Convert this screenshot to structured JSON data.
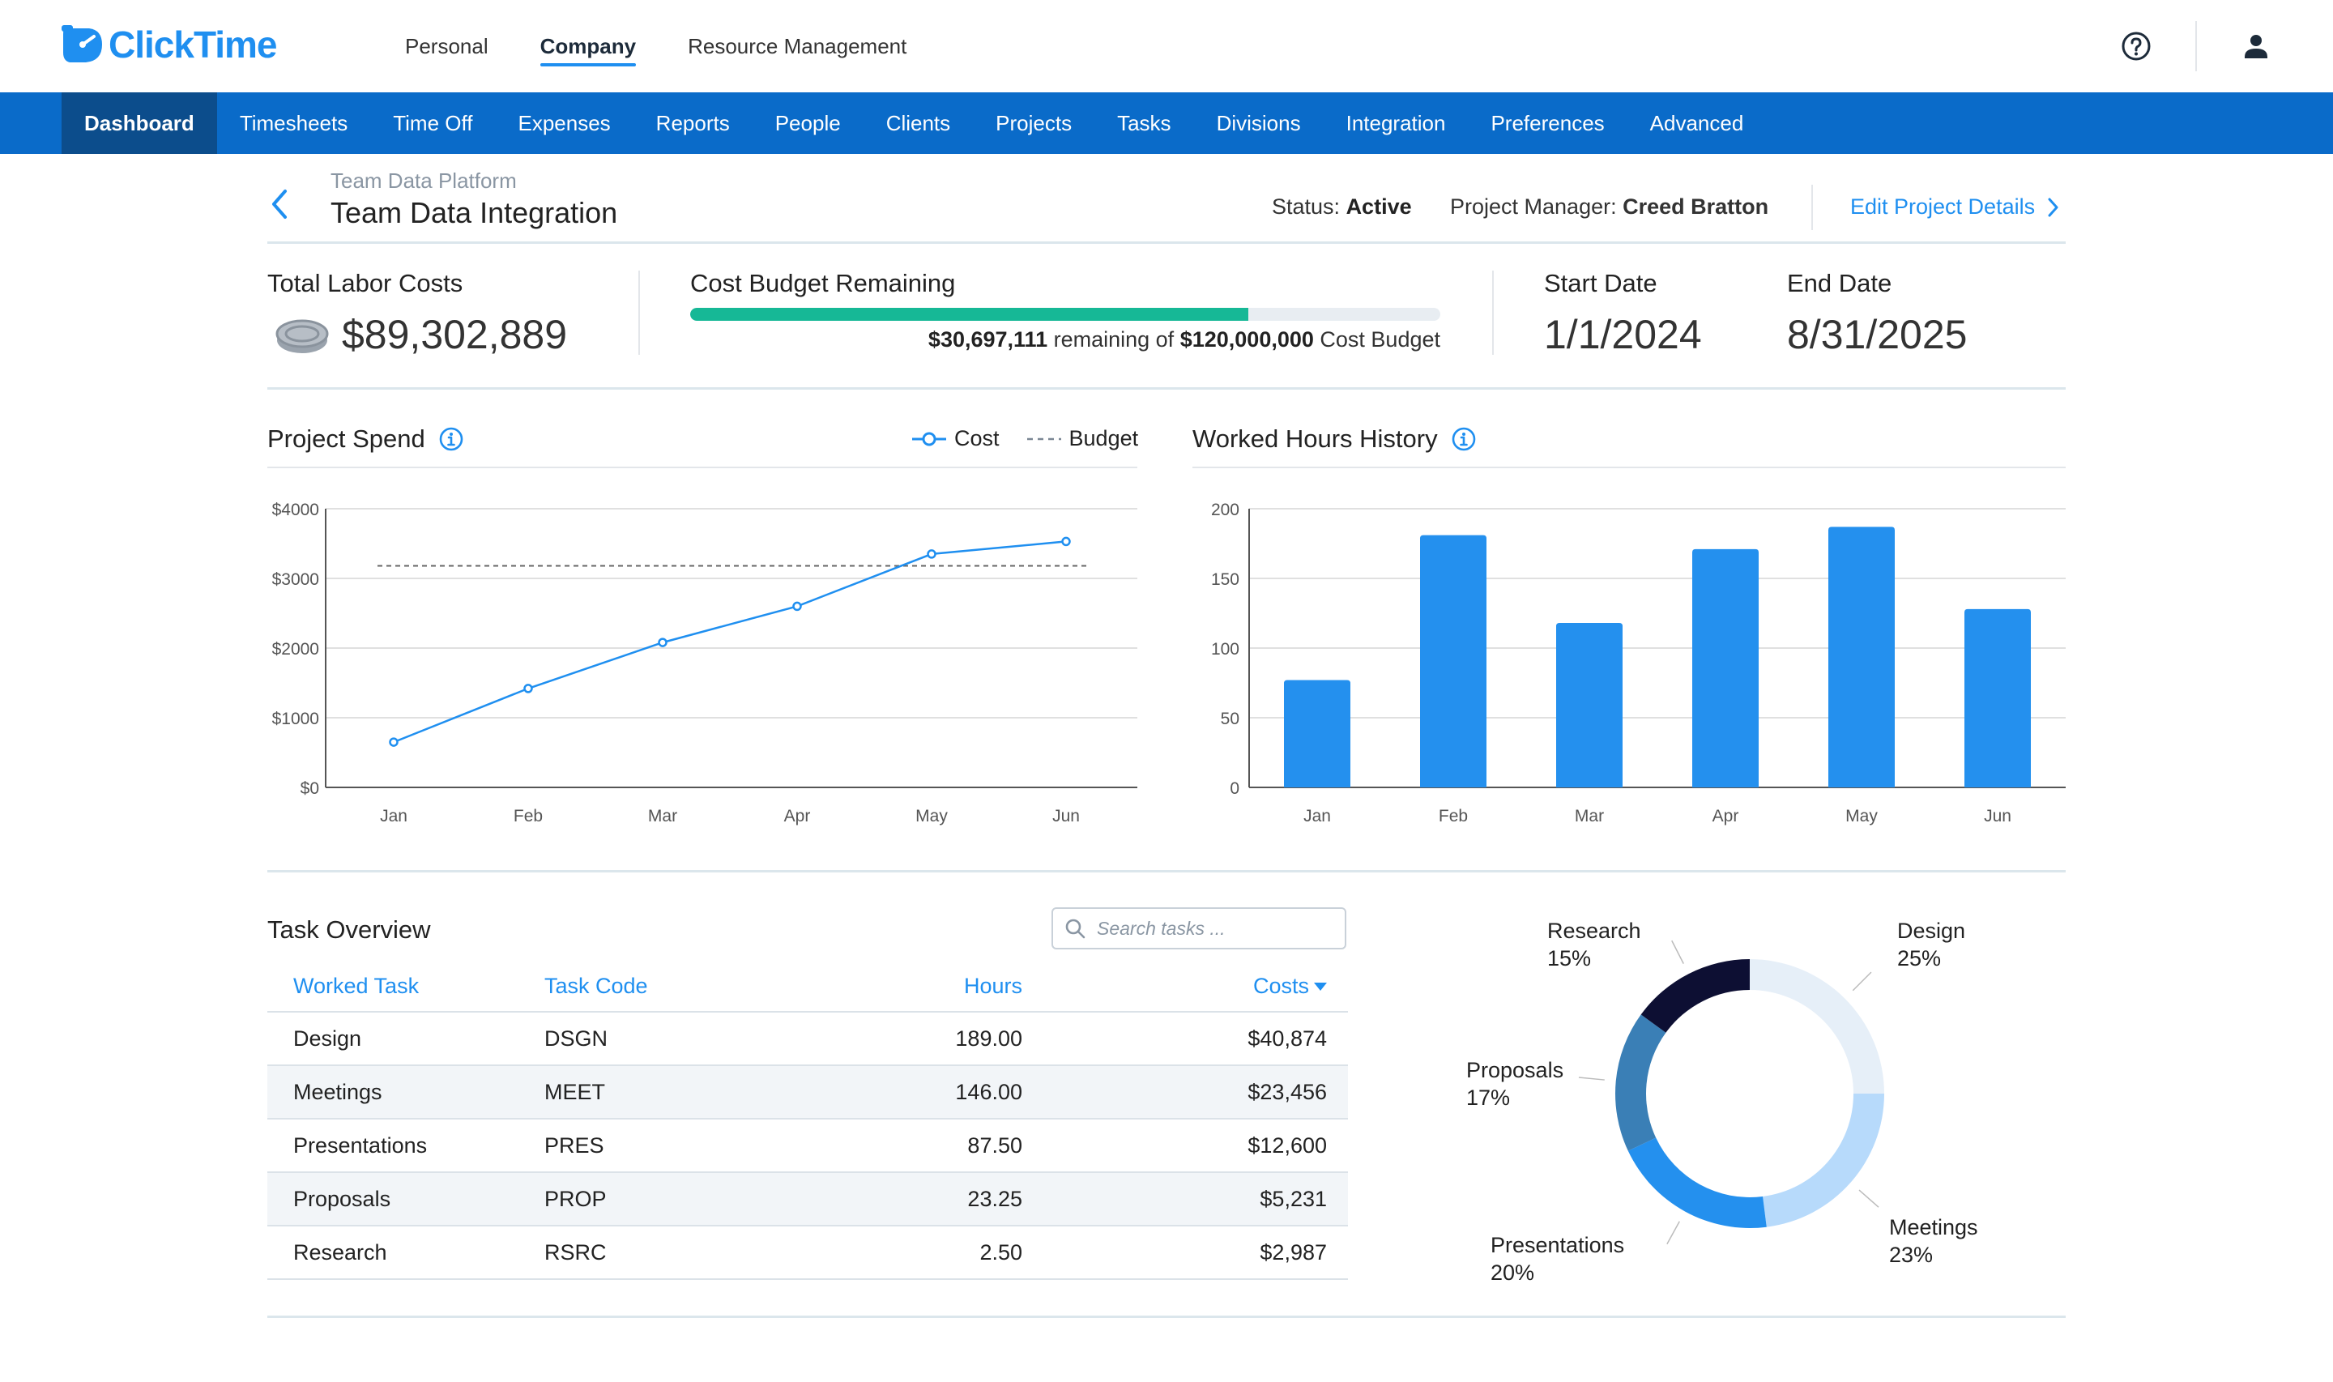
{
  "app": {
    "logo_text": "ClickTime"
  },
  "top_nav": {
    "items": [
      "Personal",
      "Company",
      "Resource Management"
    ],
    "active": "Company"
  },
  "main_nav": {
    "items": [
      "Dashboard",
      "Timesheets",
      "Time Off",
      "Expenses",
      "Reports",
      "People",
      "Clients",
      "Projects",
      "Tasks",
      "Divisions",
      "Integration",
      "Preferences",
      "Advanced"
    ],
    "active": "Dashboard"
  },
  "header": {
    "breadcrumb": "Team Data Platform",
    "title": "Team Data Integration",
    "status_label": "Status:",
    "status_value": "Active",
    "pm_label": "Project Manager:",
    "pm_value": "Creed Bratton",
    "edit_link": "Edit Project Details"
  },
  "kpis": {
    "labor_label": "Total Labor Costs",
    "labor_value": "$89,302,889",
    "budget_label": "Cost Budget Remaining",
    "budget_remaining": "$30,697,111",
    "budget_remaining_text": "remaining of",
    "budget_total": "$120,000,000",
    "budget_suffix": "Cost Budget",
    "budget_used_fraction": 0.744,
    "start_label": "Start Date",
    "start_value": "1/1/2024",
    "end_label": "End Date",
    "end_value": "8/31/2025"
  },
  "colors": {
    "accent": "#1f8ff0",
    "nav": "#0a6bc9",
    "nav_active": "#0c4d8c",
    "progress": "#16b896"
  },
  "spend_chart": {
    "title": "Project Spend",
    "legend": {
      "cost": "Cost",
      "budget": "Budget"
    }
  },
  "hours_chart": {
    "title": "Worked Hours History"
  },
  "chart_data": [
    {
      "type": "line",
      "title": "Project Spend",
      "categories": [
        "Jan",
        "Feb",
        "Mar",
        "Apr",
        "May",
        "Jun"
      ],
      "series": [
        {
          "name": "Cost",
          "values": [
            650,
            1420,
            2080,
            2600,
            3350,
            3530
          ]
        },
        {
          "name": "Budget",
          "values": [
            3180,
            3180,
            3180,
            3180,
            3180,
            3180
          ]
        }
      ],
      "yticks": [
        "$0",
        "$1000",
        "$2000",
        "$3000",
        "$4000"
      ],
      "ylim": [
        0,
        4000
      ],
      "legend": "top-right",
      "grid": true
    },
    {
      "type": "bar",
      "title": "Worked Hours History",
      "categories": [
        "Jan",
        "Feb",
        "Mar",
        "Apr",
        "May",
        "Jun"
      ],
      "values": [
        77,
        181,
        118,
        171,
        187,
        128
      ],
      "yticks": [
        "0",
        "50",
        "100",
        "150",
        "200"
      ],
      "ylim": [
        0,
        200
      ],
      "grid": true
    },
    {
      "type": "pie",
      "categories": [
        "Design",
        "Meetings",
        "Presentations",
        "Proposals",
        "Research"
      ],
      "labels": [
        "25%",
        "23%",
        "20%",
        "17%",
        "15%"
      ],
      "values": [
        25,
        23,
        20,
        17,
        15
      ],
      "colors": [
        "#e6eff8",
        "#b7dafb",
        "#2490ee",
        "#3a7fb6",
        "#0d0f33"
      ]
    }
  ],
  "tasks": {
    "title": "Task Overview",
    "search_placeholder": "Search tasks ...",
    "headers": {
      "task": "Worked Task",
      "code": "Task Code",
      "hours": "Hours",
      "costs": "Costs"
    },
    "rows": [
      {
        "task": "Design",
        "code": "DSGN",
        "hours": "189.00",
        "costs": "$40,874"
      },
      {
        "task": "Meetings",
        "code": "MEET",
        "hours": "146.00",
        "costs": "$23,456"
      },
      {
        "task": "Presentations",
        "code": "PRES",
        "hours": "87.50",
        "costs": "$12,600"
      },
      {
        "task": "Proposals",
        "code": "PROP",
        "hours": "23.25",
        "costs": "$5,231"
      },
      {
        "task": "Research",
        "code": "RSRC",
        "hours": "2.50",
        "costs": "$2,987"
      }
    ]
  }
}
